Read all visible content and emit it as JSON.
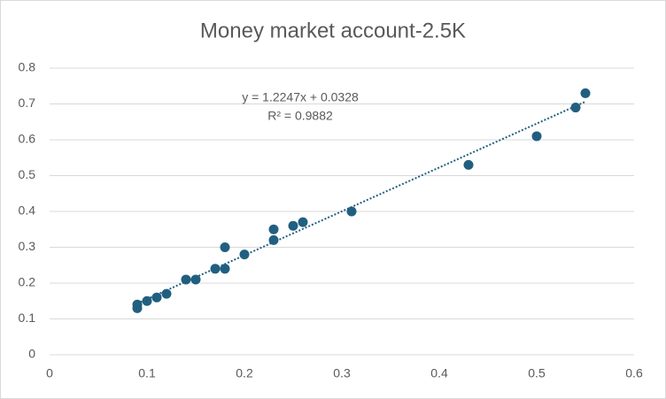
{
  "chart_data": {
    "type": "scatter",
    "title": "Money market account-2.5K",
    "x": [
      0.09,
      0.09,
      0.1,
      0.11,
      0.12,
      0.14,
      0.15,
      0.17,
      0.18,
      0.18,
      0.2,
      0.23,
      0.23,
      0.25,
      0.26,
      0.31,
      0.43,
      0.5,
      0.54,
      0.55
    ],
    "values": [
      0.13,
      0.14,
      0.15,
      0.16,
      0.17,
      0.21,
      0.21,
      0.24,
      0.24,
      0.3,
      0.28,
      0.32,
      0.35,
      0.36,
      0.37,
      0.4,
      0.53,
      0.61,
      0.69,
      0.73
    ],
    "color": "#215f80",
    "xlim": [
      0,
      0.6
    ],
    "xticks": [
      0,
      0.1,
      0.2,
      0.3,
      0.4,
      0.5,
      0.6
    ],
    "ylim": [
      0,
      0.8
    ],
    "yticks": [
      0,
      0.1,
      0.2,
      0.3,
      0.4,
      0.5,
      0.6,
      0.7,
      0.8
    ],
    "grid": true,
    "trendline": {
      "slope": 1.2247,
      "intercept": 0.0328,
      "label": "y = 1.2247x + 0.0328",
      "r2_label": "R² = 0.9882"
    }
  }
}
